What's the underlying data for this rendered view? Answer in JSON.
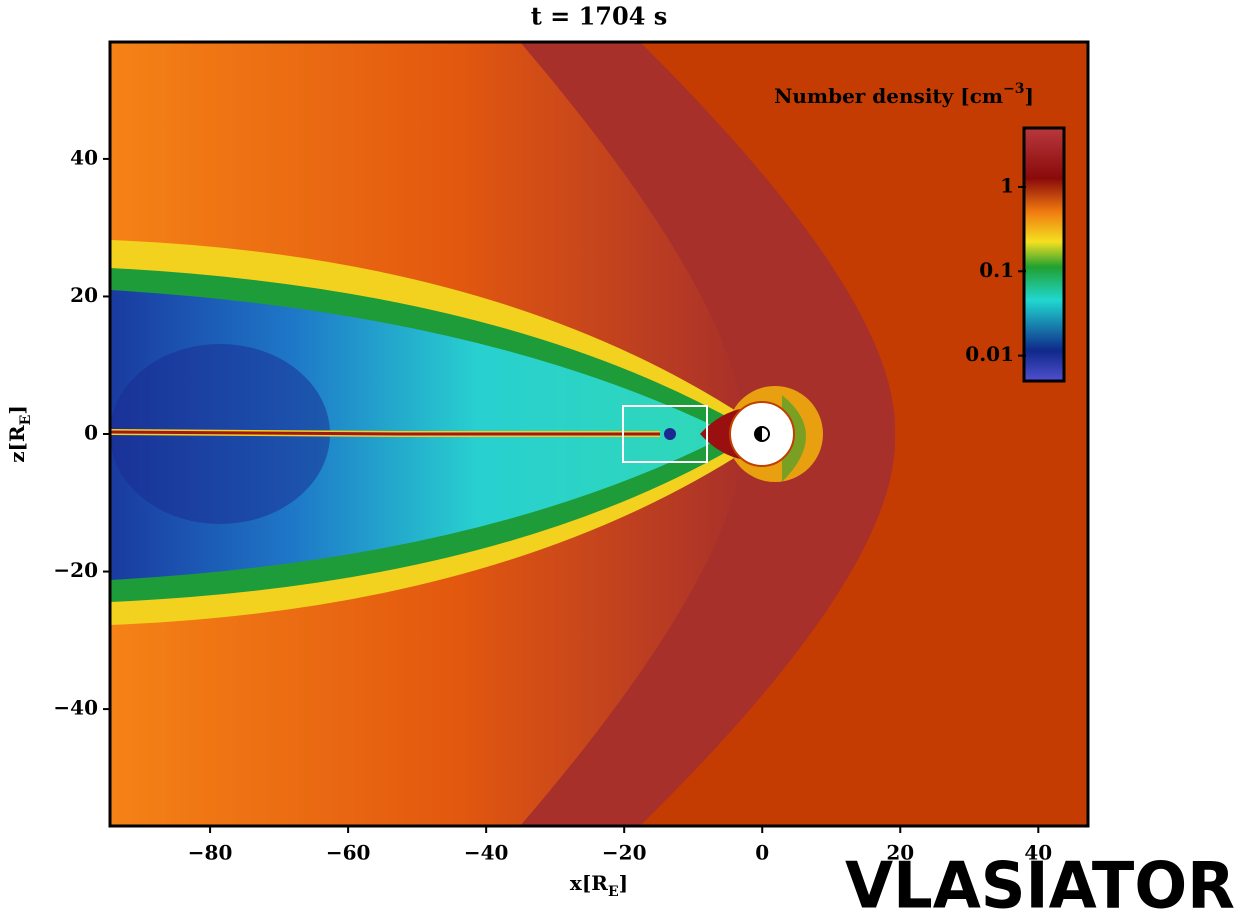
{
  "chart_data": {
    "type": "heatmap",
    "title": "t = 1704 s",
    "x_label": {
      "main": "x[R",
      "sub": "E",
      "close": "]"
    },
    "y_label": {
      "main": "z[R",
      "sub": "E",
      "close": "]"
    },
    "xlim": [
      -94.5,
      47.2
    ],
    "xticks": [
      {
        "value": -80,
        "label": "−80"
      },
      {
        "value": -60,
        "label": "−60"
      },
      {
        "value": -40,
        "label": "−40"
      },
      {
        "value": -20,
        "label": "−20"
      },
      0,
      20,
      40
    ],
    "ylim": [
      -57,
      57
    ],
    "yticks": [
      {
        "value": -40,
        "label": "−40"
      },
      {
        "value": -20,
        "label": "−20"
      },
      0,
      20,
      40
    ],
    "colorbar": {
      "label": {
        "main": "Number density [cm",
        "sup": "−3",
        "close": "]"
      },
      "scale": "log",
      "lim": [
        0.005,
        5
      ],
      "ticks": [
        0.01,
        0.1,
        1
      ]
    },
    "logo": "VLASIATOR"
  }
}
